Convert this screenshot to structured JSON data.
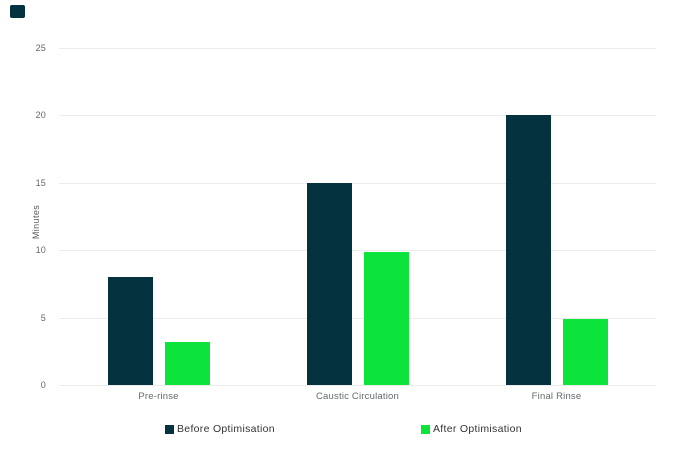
{
  "page": {
    "background": "#ffffff"
  },
  "logo": {
    "color": "#04333f"
  },
  "chart_data": {
    "type": "bar",
    "title": "",
    "categories": [
      "Pre-rinse",
      "Caustic Circulation",
      "Final Rinse"
    ],
    "series": [
      {
        "name": "Before Optimisation",
        "color": "#04333f",
        "values": [
          8,
          15,
          20
        ]
      },
      {
        "name": "After Optimisation",
        "color": "#0ce43b",
        "values": [
          3.2,
          9.9,
          4.9
        ]
      }
    ],
    "xlabel": "",
    "ylabel": "Minutes",
    "ylim": [
      0,
      25
    ],
    "yticks": [
      0,
      5,
      10,
      15,
      20,
      25
    ],
    "grid": "horizontal",
    "grid_color": "#ececec",
    "legend_position": "bottom",
    "legend": [
      "Before Optimisation",
      "After Optimisation"
    ]
  }
}
